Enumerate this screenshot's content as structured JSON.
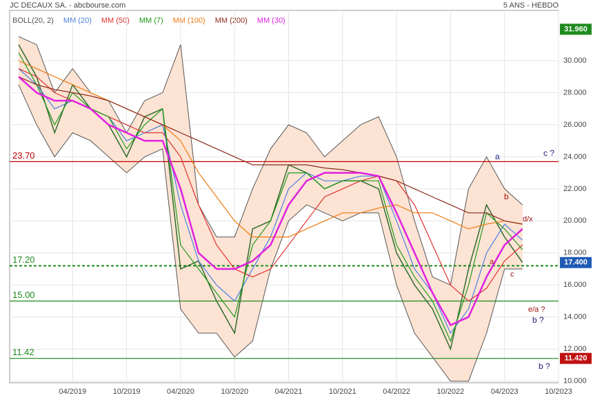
{
  "header": {
    "title": "JC DECAUX SA. - abcbourse.com",
    "period": "5 ANS - HEBDO"
  },
  "chart_data": {
    "type": "line",
    "x": [
      "10/2018",
      "12/2018",
      "02/2019",
      "04/2019",
      "06/2019",
      "08/2019",
      "10/2019",
      "12/2019",
      "02/2020",
      "04/2020",
      "06/2020",
      "08/2020",
      "10/2020",
      "12/2020",
      "02/2021",
      "04/2021",
      "06/2021",
      "08/2021",
      "10/2021",
      "12/2021",
      "02/2022",
      "04/2022",
      "06/2022",
      "08/2022",
      "10/2022",
      "12/2022",
      "02/2023",
      "04/2023",
      "06/2023"
    ],
    "xlim": [
      "09/2018",
      "10/2023"
    ],
    "xticks": [
      "04/2019",
      "10/2019",
      "04/2020",
      "10/2020",
      "04/2021",
      "10/2021",
      "04/2022",
      "10/2022",
      "04/2023",
      "10/2023"
    ],
    "ylim": [
      9.9,
      33.14
    ],
    "yticks": [
      {
        "value": 10,
        "label": "10.000"
      },
      {
        "value": 12,
        "label": "12.000"
      },
      {
        "value": 14,
        "label": "14.000"
      },
      {
        "value": 16,
        "label": "16.000"
      },
      {
        "value": 18,
        "label": "18.000"
      },
      {
        "value": 20,
        "label": "20.000"
      },
      {
        "value": 22,
        "label": "22.000"
      },
      {
        "value": 24,
        "label": "24.000"
      },
      {
        "value": 26,
        "label": "26.000"
      },
      {
        "value": 28,
        "label": "28.000"
      },
      {
        "value": 30,
        "label": "30.000"
      }
    ],
    "grid": true,
    "close": {
      "color": "#2e6b2e",
      "values": [
        31,
        29,
        25.5,
        28.5,
        27,
        26,
        24,
        26.5,
        27,
        17,
        17.5,
        15,
        13,
        19.5,
        20,
        23.5,
        23,
        22,
        22.5,
        22.5,
        22,
        18,
        16,
        14.5,
        12,
        17,
        21,
        19,
        17.4
      ]
    },
    "bollinger": {
      "name": "BOLL(20, 2)",
      "color": "#555555",
      "fill": "#fde3d3",
      "upper": [
        31.5,
        31,
        28,
        29.5,
        28,
        27.5,
        25.5,
        27.5,
        28,
        31,
        21,
        19,
        19,
        22,
        24.5,
        26,
        25.5,
        24,
        25,
        26,
        26.5,
        24,
        20,
        16.5,
        16,
        22,
        24,
        22,
        21
      ],
      "lower": [
        28.5,
        26,
        24,
        25.5,
        25,
        24,
        23,
        24,
        24.5,
        14.5,
        13,
        13,
        11.5,
        12.5,
        17,
        20,
        21,
        20.5,
        20,
        20.5,
        20.5,
        16,
        13,
        11.5,
        10,
        10,
        13,
        17,
        17
      ]
    },
    "series": [
      {
        "name": "MM (20)",
        "color": "#4a7fe0",
        "values": [
          29.5,
          28.5,
          27,
          27.5,
          27,
          26.5,
          25,
          25.5,
          26,
          21,
          17.5,
          16,
          15,
          17,
          19,
          22,
          23,
          22.5,
          22.5,
          22.8,
          22.8,
          20,
          17,
          15.5,
          13,
          14.5,
          18,
          19.8,
          18.8
        ]
      },
      {
        "name": "MM (50)",
        "color": "#e03030",
        "values": [
          29.5,
          29,
          28,
          27.5,
          27,
          26.5,
          26,
          25.5,
          25.5,
          24,
          21,
          18.5,
          17,
          16.5,
          17,
          18.5,
          20,
          21.5,
          22,
          22.5,
          22.8,
          22.5,
          21,
          18.5,
          16,
          15,
          15.8,
          17.5,
          18.5
        ]
      },
      {
        "name": "MM (7)",
        "color": "#1a9a1a",
        "values": [
          30.5,
          28.5,
          26,
          28,
          27,
          26.5,
          24.5,
          26,
          27,
          18.5,
          17,
          15.5,
          14,
          18.5,
          20,
          23,
          23,
          22,
          22.5,
          22.5,
          22.5,
          18.5,
          16.5,
          15,
          12.5,
          16,
          20.5,
          19.5,
          18.2
        ]
      },
      {
        "name": "MM (100)",
        "color": "#f07a10",
        "values": [
          30,
          29.5,
          29,
          28.5,
          28,
          27.5,
          27,
          26.5,
          26,
          25,
          23,
          21.5,
          20,
          19,
          19,
          19,
          19.5,
          20,
          20.5,
          20.5,
          20.8,
          21,
          20.5,
          20.5,
          20,
          19.5,
          19.8,
          20,
          19.8
        ]
      },
      {
        "name": "MM (200)",
        "color": "#8b2a1a",
        "values": [
          29,
          28.5,
          28.2,
          28,
          27.8,
          27.5,
          27,
          26.5,
          26,
          25.5,
          25,
          24.5,
          24,
          23.5,
          23.5,
          23.5,
          23.5,
          23.3,
          23.2,
          23,
          22.8,
          22.5,
          22,
          21.5,
          21,
          20.5,
          20.5,
          20,
          19.8
        ]
      },
      {
        "name": "MM (30)",
        "color": "#e020e0",
        "values": [
          29,
          28,
          27.5,
          27.5,
          27,
          26,
          25.5,
          25,
          25,
          22,
          18,
          17,
          17,
          17.5,
          18.5,
          21,
          22.5,
          23,
          23,
          23,
          22.8,
          20.5,
          18,
          15.5,
          13.5,
          14,
          16.5,
          18.5,
          19.5
        ]
      }
    ],
    "levels": [
      {
        "value": 23.7,
        "label": "23.70",
        "color": "#c00000",
        "dash": false
      },
      {
        "value": 17.2,
        "label": "17.20",
        "color": "#1a8a1a",
        "dash": true
      },
      {
        "value": 15,
        "label": "15.00",
        "color": "#1a8a1a",
        "dash": false
      },
      {
        "value": 11.42,
        "label": "11.42",
        "color": "#1a8a1a",
        "dash": false
      }
    ],
    "price_markers": [
      {
        "value": 31.96,
        "label": "31.960",
        "color": "#1e8a1e"
      },
      {
        "value": 17.4,
        "label": "17.400",
        "color": "#1e5bb5"
      },
      {
        "value": 11.42,
        "label": "11.420",
        "color": "#c01010"
      }
    ],
    "annotations": [
      "a",
      "c ?",
      "b",
      "d/x",
      "a",
      "c",
      "e/a ?",
      "b ?",
      "b ?"
    ]
  }
}
